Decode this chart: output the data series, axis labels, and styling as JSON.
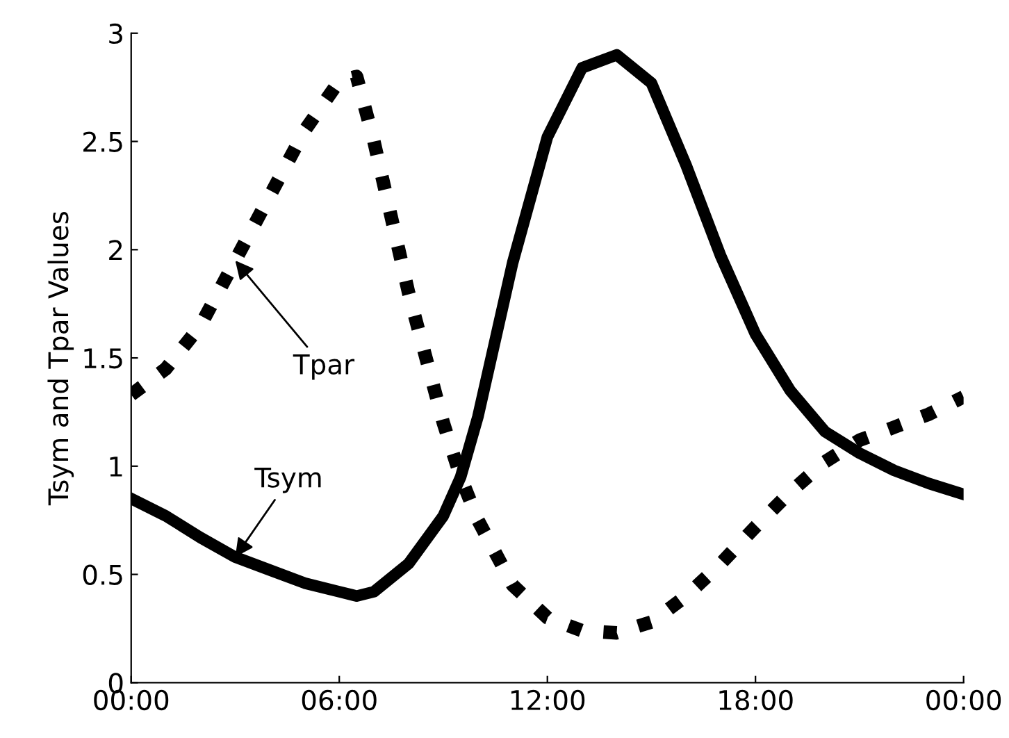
{
  "chart_data": {
    "type": "line",
    "ylabel": "Tsym and Tpar Values",
    "x": [
      0,
      1,
      2,
      3,
      4,
      5,
      6,
      6.5,
      7,
      8,
      9,
      9.5,
      10,
      11,
      12,
      13,
      14,
      15,
      16,
      17,
      18,
      19,
      20,
      21,
      22,
      23,
      24
    ],
    "series": [
      {
        "name": "Tsym",
        "color": "#000000",
        "line_style": "solid",
        "values": [
          0.85,
          0.77,
          0.67,
          0.58,
          0.52,
          0.46,
          0.42,
          0.4,
          0.42,
          0.55,
          0.77,
          0.95,
          1.23,
          1.94,
          2.52,
          2.84,
          2.9,
          2.77,
          2.39,
          1.97,
          1.61,
          1.35,
          1.16,
          1.06,
          0.98,
          0.92,
          0.87
        ]
      },
      {
        "name": "Tpar",
        "color": "#000000",
        "line_style": "dotted",
        "values": [
          1.33,
          1.45,
          1.65,
          1.95,
          2.25,
          2.55,
          2.78,
          2.8,
          2.5,
          1.8,
          1.2,
          0.95,
          0.75,
          0.45,
          0.3,
          0.24,
          0.23,
          0.28,
          0.4,
          0.55,
          0.72,
          0.88,
          1.02,
          1.12,
          1.18,
          1.24,
          1.32
        ]
      }
    ],
    "xlim": [
      0,
      24
    ],
    "xticks": [
      {
        "value": 0,
        "label": "00:00"
      },
      {
        "value": 6,
        "label": "06:00"
      },
      {
        "value": 12,
        "label": "12:00"
      },
      {
        "value": 18,
        "label": "18:00"
      },
      {
        "value": 24,
        "label": "00:00"
      }
    ],
    "ylim": [
      0,
      3
    ],
    "yticks": [
      0,
      0.5,
      1,
      1.5,
      2,
      2.5,
      3
    ],
    "grid": false,
    "legend": false
  }
}
